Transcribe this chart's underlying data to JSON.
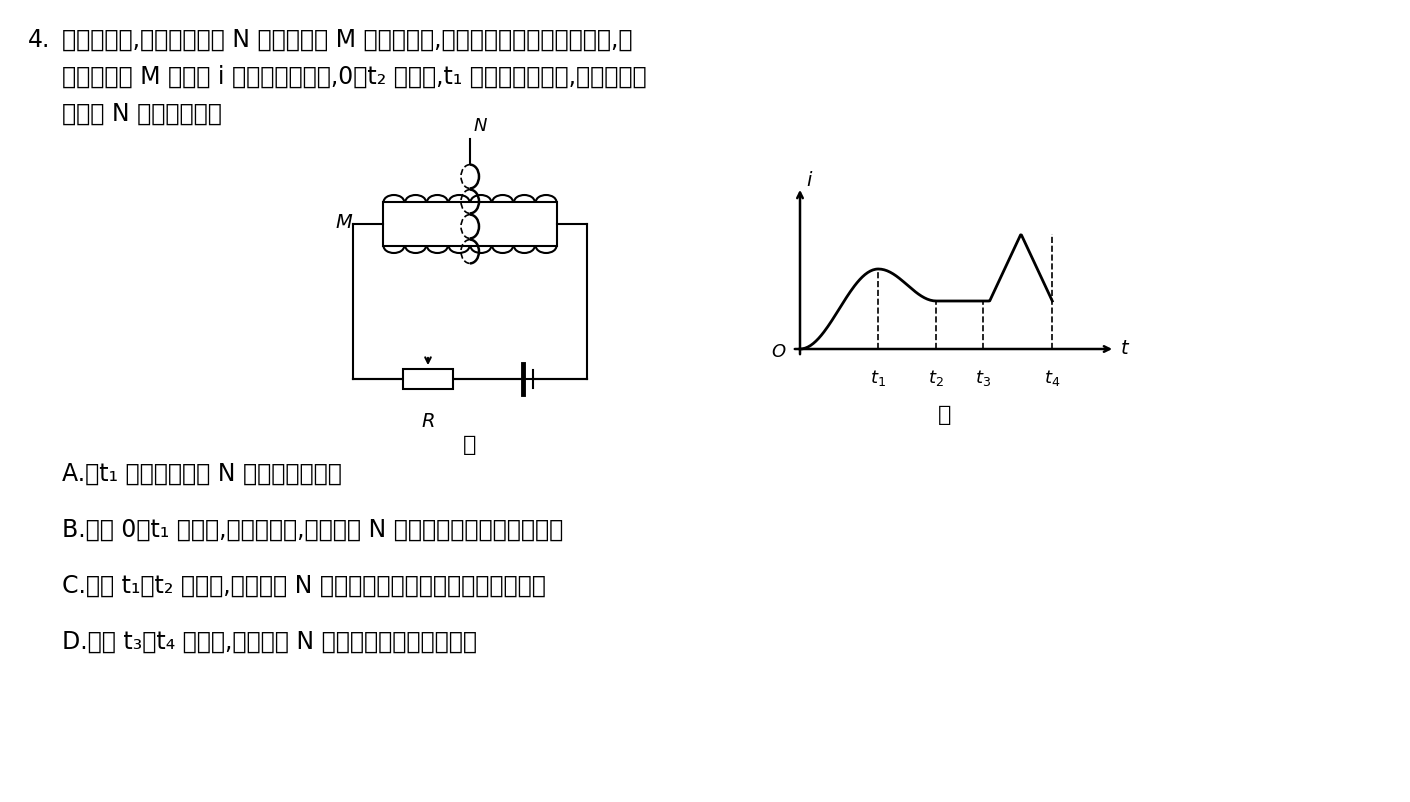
{
  "background_color": "#ffffff",
  "question_number": "4.",
  "question_text_line1": "如图甲所示,闭合金属线圈 N 套在螺线管 M 正中间位置,通过改变滑动变阔器的阔値,使",
  "question_text_line2": "流过螺线管 M 的电流 i 按图乙规律变化,0～t₂ 时间内,t₁ 时刻的电流最大,整个过程金",
  "question_text_line3": "属线圈 N 保持静止。则",
  "label_jia": "甲",
  "label_yi": "乙",
  "option_A": "A.　t₁ 时刻金属线圈 N 中没有感应电流",
  "option_B": "B.　在 0～t₁ 时间内,从右向左看,金属线圈 N 中有顺时针方向的感应电流",
  "option_C": "C.　在 t₁～t₂ 时间内,金属线圈 N 中的感应电流先减小后为一定値不变",
  "option_D": "D.　在 t₃～t₄ 时间内,金属线圈 N 中的感应电流为恒定电流",
  "text_color": "#000000",
  "font_size_main": 17,
  "graph_t1": 0.27,
  "graph_t2": 0.47,
  "graph_t3": 0.63,
  "graph_t4": 0.87
}
